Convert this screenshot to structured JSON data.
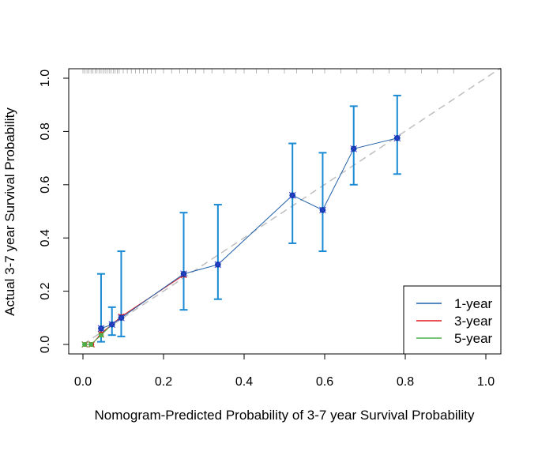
{
  "chart_data": {
    "type": "scatter",
    "title": "",
    "xlabel": "Nomogram-Predicted Probability of 3-7 year Survival Probability",
    "ylabel": "Actual 3-7 year Survival Probability",
    "xlim": [
      0,
      1.0
    ],
    "ylim": [
      0,
      1.0
    ],
    "x_ticks": [
      "0.0",
      "0.2",
      "0.4",
      "0.6",
      "0.8",
      "1.0"
    ],
    "y_ticks": [
      "0.0",
      "0.2",
      "0.4",
      "0.6",
      "0.8",
      "1.0"
    ],
    "grid": false,
    "legend_position": "bottom-right",
    "reference_line": {
      "from": [
        0,
        0
      ],
      "to": [
        1,
        1
      ],
      "style": "dashed",
      "color": "#bebebe"
    },
    "rug_x": [
      0.0,
      0.005,
      0.01,
      0.015,
      0.02,
      0.025,
      0.03,
      0.035,
      0.04,
      0.045,
      0.05,
      0.055,
      0.06,
      0.065,
      0.07,
      0.075,
      0.08,
      0.085,
      0.09,
      0.1,
      0.11,
      0.12,
      0.13,
      0.14,
      0.15,
      0.16,
      0.17,
      0.18,
      0.2,
      0.22,
      0.24,
      0.26,
      0.28,
      0.3,
      0.32,
      0.35,
      0.38,
      0.4,
      0.43,
      0.46,
      0.5,
      0.53,
      0.57,
      0.6,
      0.64,
      0.68,
      0.72,
      0.76,
      0.8,
      0.84,
      0.88,
      0.92
    ],
    "series": [
      {
        "name": "1-year",
        "color": "#1f5fa8",
        "error_color": "#1a8ad4",
        "points": [
          {
            "x": 0.045,
            "y": 0.06,
            "ylo": 0.01,
            "yhi": 0.265
          },
          {
            "x": 0.072,
            "y": 0.075,
            "ylo": 0.035,
            "yhi": 0.14
          },
          {
            "x": 0.095,
            "y": 0.1,
            "ylo": 0.03,
            "yhi": 0.35
          },
          {
            "x": 0.25,
            "y": 0.265,
            "ylo": 0.13,
            "yhi": 0.495
          },
          {
            "x": 0.335,
            "y": 0.3,
            "ylo": 0.17,
            "yhi": 0.525
          },
          {
            "x": 0.52,
            "y": 0.56,
            "ylo": 0.38,
            "yhi": 0.755
          },
          {
            "x": 0.595,
            "y": 0.505,
            "ylo": 0.35,
            "yhi": 0.72
          },
          {
            "x": 0.672,
            "y": 0.735,
            "ylo": 0.6,
            "yhi": 0.895
          },
          {
            "x": 0.78,
            "y": 0.775,
            "ylo": 0.64,
            "yhi": 0.935
          }
        ]
      },
      {
        "name": "3-year",
        "color": "#e31a1c",
        "points": [
          {
            "x": 0.005,
            "y": 0.0
          },
          {
            "x": 0.022,
            "y": 0.0
          },
          {
            "x": 0.045,
            "y": 0.04
          },
          {
            "x": 0.095,
            "y": 0.105
          },
          {
            "x": 0.25,
            "y": 0.26
          }
        ]
      },
      {
        "name": "5-year",
        "color": "#4daf4a",
        "points": [
          {
            "x": 0.004,
            "y": 0.0
          },
          {
            "x": 0.02,
            "y": 0.0
          },
          {
            "x": 0.045,
            "y": 0.035
          },
          {
            "x": 0.072,
            "y": 0.075
          }
        ]
      }
    ]
  }
}
